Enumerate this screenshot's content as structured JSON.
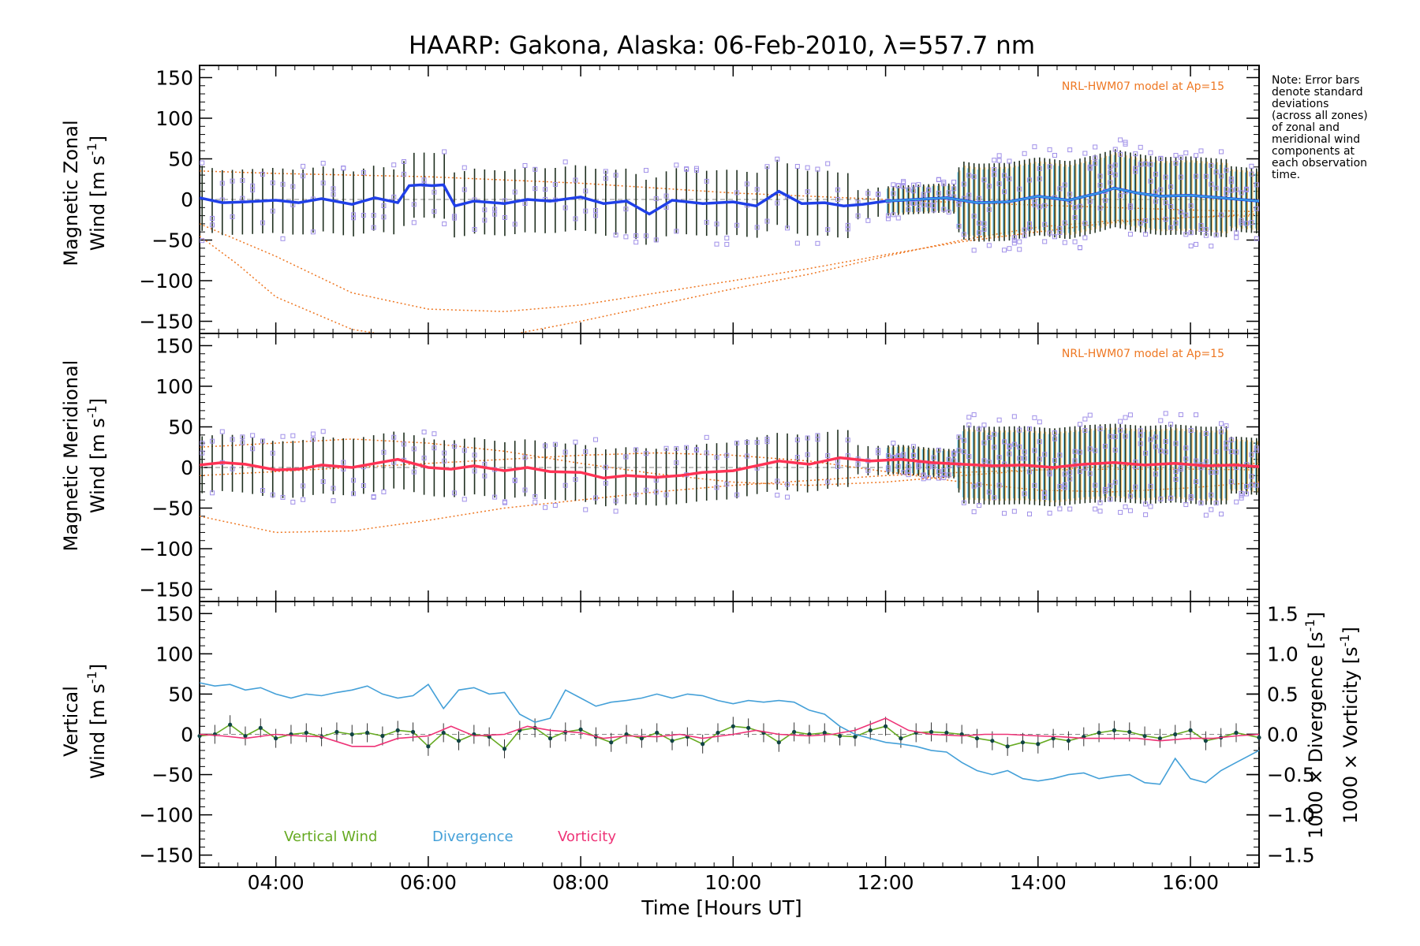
{
  "colors": {
    "zonal": "#2040e8",
    "zonal_light": "#3aa0e0",
    "meridional": "#ff3355",
    "vertical": "#66aa22",
    "divergence": "#44a0d8",
    "vorticity": "#ee3377",
    "model": "#ee7722",
    "outlier": "#a090e8",
    "errbar": "#203020"
  },
  "chart_data": {
    "type": "line",
    "title": "HAARP: Gakona,  Alaska: 06-Feb-2010, λ=557.7 nm",
    "xlabel": "Time [Hours UT]",
    "xlim": [
      3.0,
      16.9
    ],
    "x_ticks": [
      {
        "v": 4,
        "label": "04:00"
      },
      {
        "v": 6,
        "label": "06:00"
      },
      {
        "v": 8,
        "label": "08:00"
      },
      {
        "v": 10,
        "label": "10:00"
      },
      {
        "v": 12,
        "label": "12:00"
      },
      {
        "v": 14,
        "label": "14:00"
      },
      {
        "v": 16,
        "label": "16:00"
      }
    ],
    "note": [
      "Note: Error bars",
      "denote standard",
      "deviations",
      "(across all zones)",
      "of zonal and",
      "meridional wind",
      "components at",
      "each observation",
      "time."
    ],
    "panels": [
      {
        "key": "zonal",
        "ylabel_line1": "Magnetic Zonal",
        "ylabel_line2": "Wind [m s",
        "ylabel_sup": "-1",
        "ylabel_end": "]",
        "ylim": [
          -165,
          165
        ],
        "yticks": [
          150,
          100,
          50,
          0,
          -50,
          -100,
          -150
        ],
        "model_label": "NRL-HWM07 model at Ap=15",
        "series": [
          {
            "x": [
              3.0,
              3.3,
              3.6,
              4.0,
              4.3,
              4.6,
              5.0,
              5.3,
              5.6,
              5.75,
              5.9,
              6.05,
              6.2,
              6.35,
              6.6,
              7.0,
              7.3,
              7.6,
              8.0,
              8.3,
              8.6,
              8.9,
              9.2,
              9.6,
              10.0,
              10.3,
              10.6,
              10.9,
              11.2,
              11.45,
              11.7,
              12.0,
              12.4,
              12.8,
              13.2,
              13.6,
              14.0,
              14.4,
              14.8,
              15.0,
              15.3,
              15.6,
              16.0,
              16.4,
              16.9
            ],
            "y": [
              2,
              -4,
              -3,
              -1,
              -4,
              1,
              -6,
              2,
              -4,
              17,
              18,
              17,
              18,
              -8,
              -2,
              -5,
              0,
              -2,
              3,
              -5,
              -2,
              -18,
              -1,
              -5,
              -3,
              -8,
              10,
              -5,
              -4,
              -8,
              -6,
              -2,
              0,
              2,
              -4,
              -3,
              4,
              -1,
              8,
              14,
              8,
              4,
              5,
              2,
              -2
            ]
          }
        ],
        "model": [
          {
            "x": [
              3.0,
              4.0,
              5.0,
              6.0,
              7.0,
              8.0,
              9.0,
              10.0,
              11.0,
              12.0,
              13.0,
              14.0,
              15.0,
              16.0,
              16.9
            ],
            "y": [
              35,
              32,
              30,
              28,
              24,
              20,
              14,
              8,
              4,
              0,
              -4,
              -7,
              -10,
              -13,
              -15
            ]
          },
          {
            "x": [
              3.0,
              4.0,
              5.0,
              6.0,
              7.0,
              8.0,
              9.0,
              10.0,
              11.0,
              12.0,
              13.0,
              14.0,
              15.0,
              16.0,
              16.9
            ],
            "y": [
              -30,
              -70,
              -115,
              -135,
              -138,
              -130,
              -115,
              -100,
              -85,
              -68,
              -52,
              -40,
              -28,
              -22,
              -18
            ]
          },
          {
            "x": [
              3.0,
              3.5,
              4.0,
              5.0,
              6.0,
              7.0,
              8.0,
              9.0,
              10.0,
              11.0,
              12.0,
              13.0,
              14.0,
              15.0,
              16.0,
              16.9
            ],
            "y": [
              -45,
              -80,
              -120,
              -160,
              -175,
              -168,
              -150,
              -130,
              -110,
              -92,
              -70,
              -50,
              -34,
              -26,
              -22,
              -20
            ]
          }
        ]
      },
      {
        "key": "meridional",
        "ylabel_line1": "Magnetic Meridional",
        "ylabel_line2": "Wind [m s",
        "ylabel_sup": "-1",
        "ylabel_end": "]",
        "ylim": [
          -165,
          165
        ],
        "yticks": [
          150,
          100,
          50,
          0,
          -50,
          -100,
          -150
        ],
        "model_label": "NRL-HWM07 model at Ap=15",
        "series": [
          {
            "x": [
              3.0,
              3.3,
              3.6,
              4.0,
              4.3,
              4.6,
              5.0,
              5.3,
              5.6,
              6.0,
              6.3,
              6.6,
              7.0,
              7.3,
              7.6,
              8.0,
              8.3,
              8.6,
              9.0,
              9.3,
              9.6,
              10.0,
              10.3,
              10.6,
              11.0,
              11.4,
              11.8,
              12.2,
              12.6,
              13.0,
              13.4,
              13.8,
              14.2,
              14.6,
              15.0,
              15.4,
              15.8,
              16.2,
              16.6,
              16.9
            ],
            "y": [
              3,
              6,
              4,
              -3,
              -2,
              3,
              0,
              5,
              10,
              0,
              -2,
              2,
              -4,
              0,
              -5,
              -6,
              -13,
              -10,
              -12,
              -10,
              -6,
              -4,
              2,
              8,
              4,
              12,
              8,
              10,
              6,
              4,
              2,
              3,
              0,
              4,
              6,
              3,
              5,
              2,
              3,
              1
            ]
          }
        ],
        "model": [
          {
            "x": [
              3.0,
              4.0,
              5.0,
              6.0,
              7.0,
              8.0,
              9.0,
              10.0,
              11.0,
              12.0,
              13.0,
              14.0,
              15.0,
              16.0,
              16.9
            ],
            "y": [
              25,
              30,
              35,
              30,
              20,
              5,
              -8,
              -18,
              -22,
              -18,
              -10,
              -3,
              2,
              4,
              5
            ]
          },
          {
            "x": [
              3.0,
              4.0,
              5.0,
              6.0,
              7.0,
              8.0,
              9.0,
              10.0,
              11.0,
              12.0,
              13.0,
              14.0,
              15.0,
              16.0,
              16.9
            ],
            "y": [
              -60,
              -80,
              -78,
              -65,
              -50,
              -40,
              -30,
              -22,
              -16,
              -10,
              -6,
              -3,
              -2,
              -2,
              -3
            ]
          },
          {
            "x": [
              3.0,
              4.0,
              5.0,
              6.0,
              7.0,
              8.0,
              9.0,
              10.0,
              11.0,
              12.0,
              13.0,
              14.0,
              15.0,
              16.0,
              16.9
            ],
            "y": [
              -10,
              -5,
              0,
              5,
              10,
              15,
              18,
              15,
              8,
              -5,
              -18,
              -28,
              -30,
              -25,
              -18
            ]
          }
        ]
      },
      {
        "key": "vertical",
        "ylabel_line1": "Vertical",
        "ylabel_line2": "Wind [m s",
        "ylabel_sup": "-1",
        "ylabel_end": "]",
        "ylim": [
          -165,
          165
        ],
        "yticks": [
          150,
          100,
          50,
          0,
          -50,
          -100,
          -150
        ],
        "right_ylim": [
          -1.65,
          1.65
        ],
        "right_yticks": [
          {
            "v": 1.5,
            "label": "1.5"
          },
          {
            "v": 1.0,
            "label": "1.0"
          },
          {
            "v": 0.5,
            "label": "0.5"
          },
          {
            "v": 0.0,
            "label": "0.0"
          },
          {
            "v": -0.5,
            "label": "−0.5"
          },
          {
            "v": -1.0,
            "label": "−1.0"
          },
          {
            "v": -1.5,
            "label": "−1.5"
          }
        ],
        "right_label_div": "1000 × Divergence [s",
        "right_label_vort": "1000 × Vorticity [s",
        "right_label_sup": "-1",
        "right_label_end": "]",
        "legend": [
          "Vertical Wind",
          "Divergence",
          "Vorticity"
        ],
        "series": [
          {
            "name": "Vertical Wind",
            "axis": "left",
            "x": [
              3.0,
              3.2,
              3.4,
              3.6,
              3.8,
              4.0,
              4.2,
              4.4,
              4.6,
              4.8,
              5.0,
              5.2,
              5.4,
              5.6,
              5.8,
              6.0,
              6.2,
              6.4,
              6.6,
              6.8,
              7.0,
              7.2,
              7.4,
              7.6,
              7.8,
              8.0,
              8.2,
              8.4,
              8.6,
              8.8,
              9.0,
              9.2,
              9.4,
              9.6,
              9.8,
              10.0,
              10.2,
              10.4,
              10.6,
              10.8,
              11.0,
              11.2,
              11.4,
              11.6,
              11.8,
              12.0,
              12.2,
              12.4,
              12.6,
              12.8,
              13.0,
              13.2,
              13.4,
              13.6,
              13.8,
              14.0,
              14.2,
              14.4,
              14.6,
              14.8,
              15.0,
              15.2,
              15.4,
              15.6,
              15.8,
              16.0,
              16.2,
              16.4,
              16.6,
              16.9
            ],
            "y": [
              -2,
              0,
              12,
              -2,
              8,
              -5,
              0,
              2,
              -3,
              3,
              0,
              2,
              -2,
              5,
              3,
              -15,
              2,
              -8,
              0,
              -3,
              -18,
              5,
              8,
              -5,
              3,
              6,
              -3,
              -10,
              0,
              -5,
              2,
              -8,
              -3,
              -12,
              2,
              10,
              8,
              2,
              -10,
              3,
              0,
              2,
              -2,
              -3,
              5,
              10,
              -5,
              2,
              3,
              2,
              0,
              -5,
              -8,
              -15,
              -10,
              -12,
              -5,
              -8,
              -3,
              2,
              5,
              3,
              -2,
              -5,
              0,
              5,
              -8,
              -4,
              2,
              -4
            ]
          },
          {
            "name": "Divergence",
            "axis": "right",
            "x": [
              3.0,
              3.2,
              3.4,
              3.6,
              3.8,
              4.0,
              4.2,
              4.4,
              4.6,
              4.8,
              5.0,
              5.2,
              5.4,
              5.6,
              5.8,
              6.0,
              6.2,
              6.4,
              6.6,
              6.8,
              7.0,
              7.2,
              7.4,
              7.6,
              7.8,
              8.0,
              8.2,
              8.4,
              8.6,
              8.8,
              9.0,
              9.2,
              9.4,
              9.6,
              9.8,
              10.0,
              10.2,
              10.4,
              10.6,
              10.8,
              11.0,
              11.2,
              11.4,
              11.6,
              11.8,
              12.0,
              12.2,
              12.4,
              12.6,
              12.8,
              13.0,
              13.2,
              13.4,
              13.6,
              13.8,
              14.0,
              14.2,
              14.4,
              14.6,
              14.8,
              15.0,
              15.2,
              15.4,
              15.6,
              15.8,
              16.0,
              16.2,
              16.4,
              16.6,
              16.9
            ],
            "y": [
              0.64,
              0.6,
              0.62,
              0.55,
              0.58,
              0.5,
              0.45,
              0.5,
              0.48,
              0.52,
              0.55,
              0.6,
              0.5,
              0.45,
              0.48,
              0.62,
              0.32,
              0.55,
              0.58,
              0.5,
              0.52,
              0.25,
              0.15,
              0.2,
              0.55,
              0.45,
              0.35,
              0.4,
              0.42,
              0.45,
              0.5,
              0.45,
              0.5,
              0.48,
              0.42,
              0.38,
              0.42,
              0.4,
              0.42,
              0.4,
              0.3,
              0.25,
              0.1,
              0.0,
              -0.05,
              -0.1,
              -0.12,
              -0.15,
              -0.2,
              -0.22,
              -0.35,
              -0.45,
              -0.5,
              -0.45,
              -0.55,
              -0.58,
              -0.55,
              -0.5,
              -0.48,
              -0.55,
              -0.52,
              -0.5,
              -0.6,
              -0.62,
              -0.3,
              -0.55,
              -0.6,
              -0.45,
              -0.35,
              -0.2
            ]
          },
          {
            "name": "Vorticity",
            "axis": "right",
            "x": [
              3.0,
              3.3,
              3.6,
              4.0,
              4.3,
              4.6,
              5.0,
              5.3,
              5.6,
              6.0,
              6.3,
              6.6,
              7.0,
              7.3,
              7.6,
              8.0,
              8.3,
              8.6,
              9.0,
              9.3,
              9.6,
              10.0,
              10.3,
              10.6,
              11.0,
              11.3,
              11.6,
              12.0,
              12.3,
              12.6,
              13.0,
              13.3,
              13.6,
              14.0,
              14.3,
              14.6,
              15.0,
              15.3,
              15.6,
              16.0,
              16.3,
              16.6,
              16.9
            ],
            "y": [
              0.0,
              -0.02,
              -0.05,
              0.0,
              -0.02,
              -0.03,
              -0.15,
              -0.15,
              -0.05,
              -0.02,
              0.1,
              -0.02,
              0.0,
              0.1,
              0.05,
              0.02,
              -0.05,
              -0.02,
              -0.03,
              0.0,
              -0.05,
              0.0,
              0.05,
              0.0,
              -0.02,
              0.0,
              0.05,
              0.2,
              0.05,
              0.0,
              -0.02,
              0.0,
              0.0,
              -0.02,
              -0.03,
              -0.05,
              -0.05,
              -0.05,
              -0.08,
              -0.05,
              -0.05,
              -0.02,
              0.0
            ]
          }
        ]
      }
    ]
  }
}
